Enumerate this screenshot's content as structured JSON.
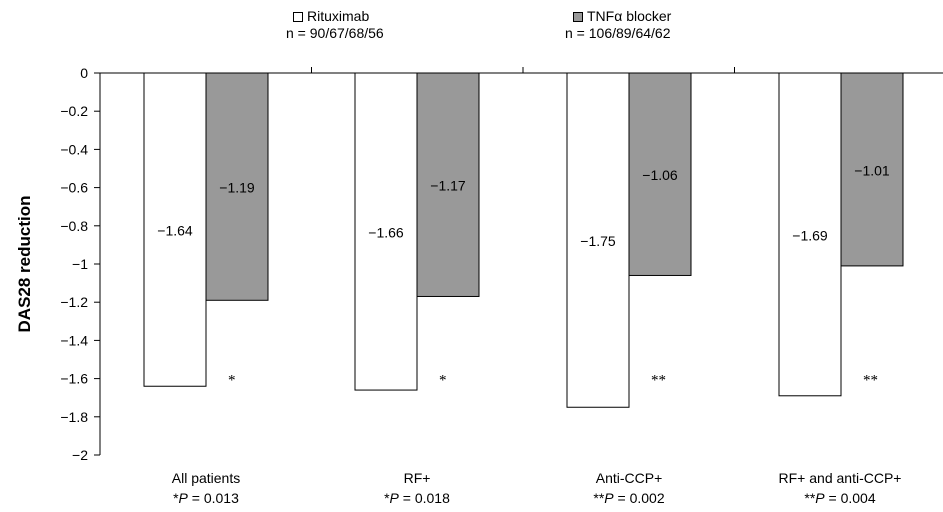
{
  "chart_data": {
    "type": "bar",
    "ylabel": "DAS28 reduction",
    "ylim": [
      -2,
      0
    ],
    "yticks": [
      "0",
      "−0.2",
      "−0.4",
      "−0.6",
      "−0.8",
      "−1",
      "−1.2",
      "−1.4",
      "−1.6",
      "−1.8",
      "−2"
    ],
    "ytick_values": [
      0,
      -0.2,
      -0.4,
      -0.6,
      -0.8,
      -1,
      -1.2,
      -1.4,
      -1.6,
      -1.8,
      -2
    ],
    "categories": [
      "All patients",
      "RF+",
      "Anti-CCP+",
      "RF+ and anti-CCP+"
    ],
    "series": [
      {
        "name": "Rituximab",
        "n_label": "n = 90/67/68/56",
        "color": "#ffffff",
        "values": [
          -1.64,
          -1.66,
          -1.75,
          -1.69
        ],
        "labels": [
          "−1.64",
          "−1.66",
          "−1.75",
          "−1.69"
        ]
      },
      {
        "name": "TNFα blocker",
        "n_label": "n = 106/89/64/62",
        "color": "#999999",
        "values": [
          -1.19,
          -1.17,
          -1.06,
          -1.01
        ],
        "labels": [
          "−1.19",
          "−1.17",
          "−1.06",
          "−1.01"
        ]
      }
    ],
    "significance": [
      "*",
      "*",
      "**",
      "**"
    ],
    "p_values": [
      {
        "prefix": "*",
        "p": "P",
        "rest": " = 0.013"
      },
      {
        "prefix": "*",
        "p": "P",
        "rest": " = 0.018"
      },
      {
        "prefix": "**",
        "p": "P",
        "rest": " = 0.002"
      },
      {
        "prefix": "**",
        "p": "P",
        "rest": " = 0.004"
      }
    ],
    "legend_position": "top-center"
  }
}
